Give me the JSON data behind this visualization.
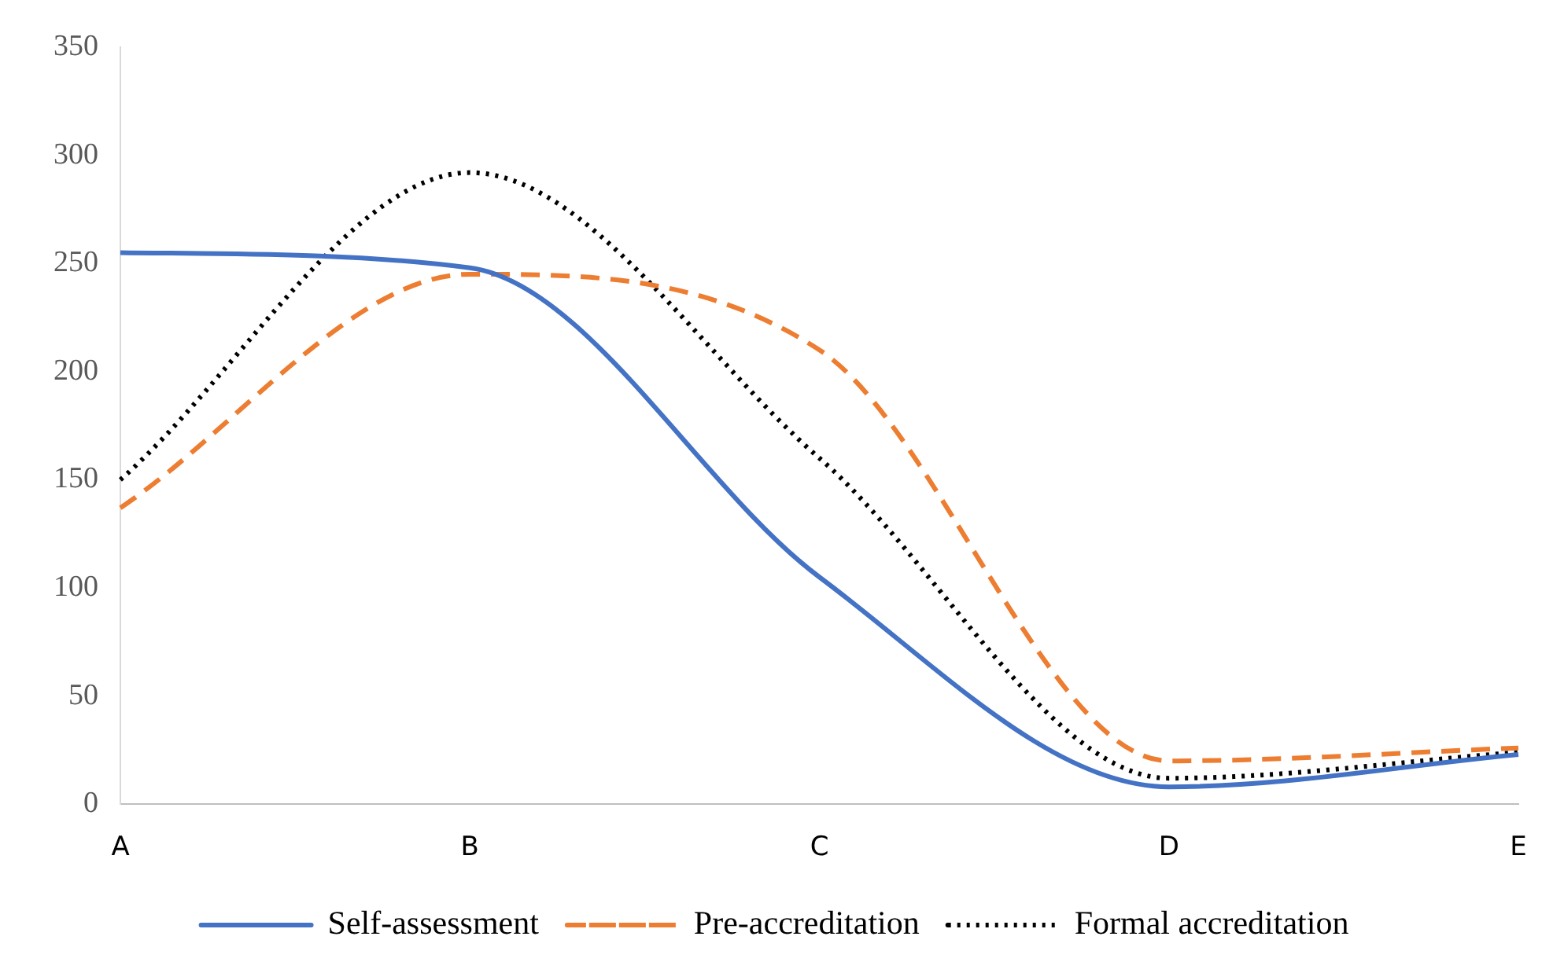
{
  "chart_data": {
    "type": "line",
    "categories": [
      "A",
      "B",
      "C",
      "D",
      "E"
    ],
    "series": [
      {
        "name": "Self-assessment",
        "color": "#4472c4",
        "line_style": "solid",
        "values": [
          255,
          248,
          105,
          8,
          23
        ]
      },
      {
        "name": "Pre-accreditation",
        "color": "#ed7d31",
        "line_style": "dashed",
        "values": [
          137,
          245,
          210,
          20,
          26
        ]
      },
      {
        "name": "Formal accreditation",
        "color": "#000000",
        "line_style": "dotted",
        "values": [
          150,
          292,
          160,
          12,
          24
        ]
      }
    ],
    "ylim": [
      0,
      350
    ],
    "yticks": [
      0,
      50,
      100,
      150,
      200,
      250,
      300,
      350
    ],
    "grid": false,
    "legend": "bottom",
    "marker": "none"
  }
}
